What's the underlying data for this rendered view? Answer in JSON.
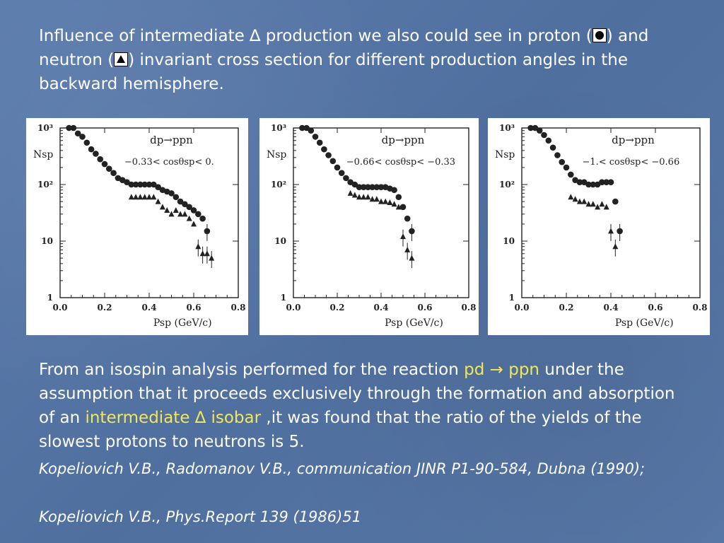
{
  "intro": {
    "part1": "Influence of intermediate ",
    "delta": "∆",
    "part2": " production we also could see in proton (",
    "part3": ") and neutron (",
    "part4": ") invariant cross section for different production angles in the backward hemisphere."
  },
  "body": {
    "part1": "From an isospin analysis performed for the reaction ",
    "reaction": "pd → ppn",
    "part2": " under the assumption that it proceeds exclusively through the formation and absorption of an ",
    "isobar": "intermediate  ∆ isobar",
    "part3": " ,it was found that the ratio of the yields of the slowest protons to neutrons is 5."
  },
  "references": [
    "Kopeliovich  V.B., Radomanov V.B., communication JINR P1-90-584, Dubna (1990);",
    "Kopeliovich V.B., Phys.Report 139 (1986)51"
  ],
  "colors": {
    "background": "#5676a6",
    "text": "#ffffff",
    "highlight": "#f2e65a"
  },
  "chart_data": [
    {
      "type": "scatter",
      "title": "dp→ppn",
      "annotation": "−0.33< cosθsp< 0.",
      "xlabel": "Psp (GeV/c)",
      "ylabel": "Nsp",
      "xlim": [
        0.0,
        0.8
      ],
      "ylim": [
        1,
        1000
      ],
      "yscale": "log",
      "xticks": [
        "0.0",
        "0.2",
        "0.4",
        "0.6",
        "0.8"
      ],
      "yticks": [
        "1",
        "10",
        "10²",
        "10³"
      ],
      "series": [
        {
          "marker": "circle",
          "x": [
            0.04,
            0.06,
            0.08,
            0.1,
            0.12,
            0.14,
            0.16,
            0.18,
            0.2,
            0.22,
            0.24,
            0.26,
            0.28,
            0.3,
            0.32,
            0.34,
            0.36,
            0.38,
            0.4,
            0.42,
            0.44,
            0.46,
            0.48,
            0.5,
            0.52,
            0.54,
            0.56,
            0.58,
            0.6,
            0.62,
            0.64,
            0.66
          ],
          "y": [
            1000,
            1000,
            800,
            700,
            550,
            420,
            350,
            280,
            230,
            190,
            160,
            130,
            120,
            110,
            100,
            100,
            100,
            100,
            100,
            100,
            90,
            80,
            75,
            70,
            60,
            50,
            45,
            40,
            35,
            30,
            25,
            15
          ]
        },
        {
          "marker": "triangle",
          "x": [
            0.32,
            0.34,
            0.36,
            0.38,
            0.4,
            0.42,
            0.44,
            0.46,
            0.48,
            0.5,
            0.52,
            0.54,
            0.56,
            0.58,
            0.6,
            0.62,
            0.64,
            0.66,
            0.68
          ],
          "y": [
            60,
            60,
            60,
            60,
            60,
            60,
            50,
            40,
            35,
            30,
            35,
            30,
            30,
            25,
            20,
            8,
            6,
            6,
            5
          ]
        }
      ]
    },
    {
      "type": "scatter",
      "title": "dp→ppn",
      "annotation": "−0.66< cosθsp< −0.33",
      "xlabel": "Psp (GeV/c)",
      "ylabel": "Nsp",
      "xlim": [
        0.0,
        0.8
      ],
      "ylim": [
        1,
        1000
      ],
      "yscale": "log",
      "xticks": [
        "0.0",
        "0.2",
        "0.4",
        "0.6",
        "0.8"
      ],
      "yticks": [
        "1",
        "10",
        "10²",
        "10³"
      ],
      "series": [
        {
          "marker": "circle",
          "x": [
            0.04,
            0.06,
            0.08,
            0.1,
            0.12,
            0.14,
            0.16,
            0.18,
            0.2,
            0.22,
            0.24,
            0.26,
            0.28,
            0.3,
            0.32,
            0.34,
            0.36,
            0.38,
            0.4,
            0.42,
            0.44,
            0.46,
            0.48,
            0.5,
            0.52,
            0.54
          ],
          "y": [
            1000,
            1000,
            900,
            700,
            550,
            420,
            330,
            260,
            200,
            160,
            130,
            110,
            100,
            90,
            90,
            90,
            90,
            90,
            90,
            90,
            85,
            80,
            60,
            40,
            25,
            15
          ]
        },
        {
          "marker": "triangle",
          "x": [
            0.26,
            0.28,
            0.3,
            0.32,
            0.34,
            0.36,
            0.38,
            0.4,
            0.42,
            0.44,
            0.46,
            0.48,
            0.5,
            0.52,
            0.54
          ],
          "y": [
            70,
            65,
            60,
            60,
            60,
            55,
            55,
            50,
            50,
            48,
            45,
            40,
            12,
            7,
            5
          ]
        }
      ]
    },
    {
      "type": "scatter",
      "title": "dp→ppn",
      "annotation": "−1.< cosθsp< −0.66",
      "xlabel": "Psp (GeV/c)",
      "ylabel": "Nsp",
      "xlim": [
        0.0,
        0.8
      ],
      "ylim": [
        1,
        1000
      ],
      "yscale": "log",
      "xticks": [
        "0.0",
        "0.2",
        "0.4",
        "0.6",
        "0.8"
      ],
      "yticks": [
        "1",
        "10",
        "10²",
        "10³"
      ],
      "series": [
        {
          "marker": "circle",
          "x": [
            0.04,
            0.06,
            0.08,
            0.1,
            0.12,
            0.14,
            0.16,
            0.18,
            0.2,
            0.22,
            0.24,
            0.26,
            0.28,
            0.3,
            0.32,
            0.34,
            0.36,
            0.38,
            0.4,
            0.42,
            0.44
          ],
          "y": [
            1000,
            1000,
            900,
            750,
            600,
            450,
            330,
            250,
            200,
            150,
            120,
            110,
            110,
            100,
            100,
            100,
            110,
            110,
            110,
            50,
            15
          ]
        },
        {
          "marker": "triangle",
          "x": [
            0.22,
            0.24,
            0.26,
            0.28,
            0.3,
            0.32,
            0.34,
            0.36,
            0.38,
            0.4,
            0.42
          ],
          "y": [
            60,
            55,
            50,
            50,
            45,
            45,
            40,
            45,
            40,
            15,
            8
          ]
        }
      ]
    }
  ]
}
